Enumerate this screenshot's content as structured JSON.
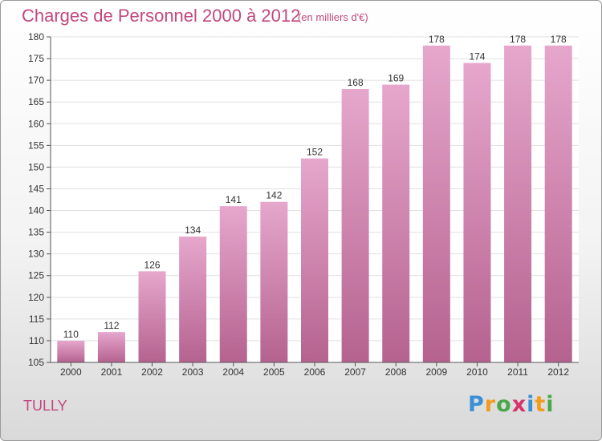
{
  "header": {
    "title": "Charges de Personnel 2000 à 2012",
    "subtitle": "(en milliers d'€)"
  },
  "place_name": "TULLY",
  "logo": {
    "text": "Proxiti",
    "letters": [
      {
        "char": "P",
        "color": "#3a8fd6"
      },
      {
        "char": "r",
        "color": "#f29b1d"
      },
      {
        "char": "o",
        "color": "#4aa84a"
      },
      {
        "char": "x",
        "color": "#d6336c"
      },
      {
        "char": "i",
        "color": "#3a8fd6"
      },
      {
        "char": "t",
        "color": "#f29b1d"
      },
      {
        "char": "i",
        "color": "#4aa84a"
      }
    ]
  },
  "colors": {
    "accent": "#c2487f",
    "bar_top": "#e6a7cd",
    "bar_bottom": "#b5628f",
    "grid": "#e0e0e0"
  },
  "chart_data": {
    "type": "bar",
    "title": "Charges de Personnel 2000 à 2012",
    "subtitle": "(en milliers d'€)",
    "categories": [
      "2000",
      "2001",
      "2002",
      "2003",
      "2004",
      "2005",
      "2006",
      "2007",
      "2008",
      "2009",
      "2010",
      "2011",
      "2012"
    ],
    "values": [
      110,
      112,
      126,
      134,
      141,
      142,
      152,
      168,
      169,
      178,
      174,
      178,
      178
    ],
    "ylim": [
      105,
      180
    ],
    "yticks": [
      105,
      110,
      115,
      120,
      125,
      130,
      135,
      140,
      145,
      150,
      155,
      160,
      165,
      170,
      175,
      180
    ],
    "grid": true,
    "data_labels": true
  }
}
